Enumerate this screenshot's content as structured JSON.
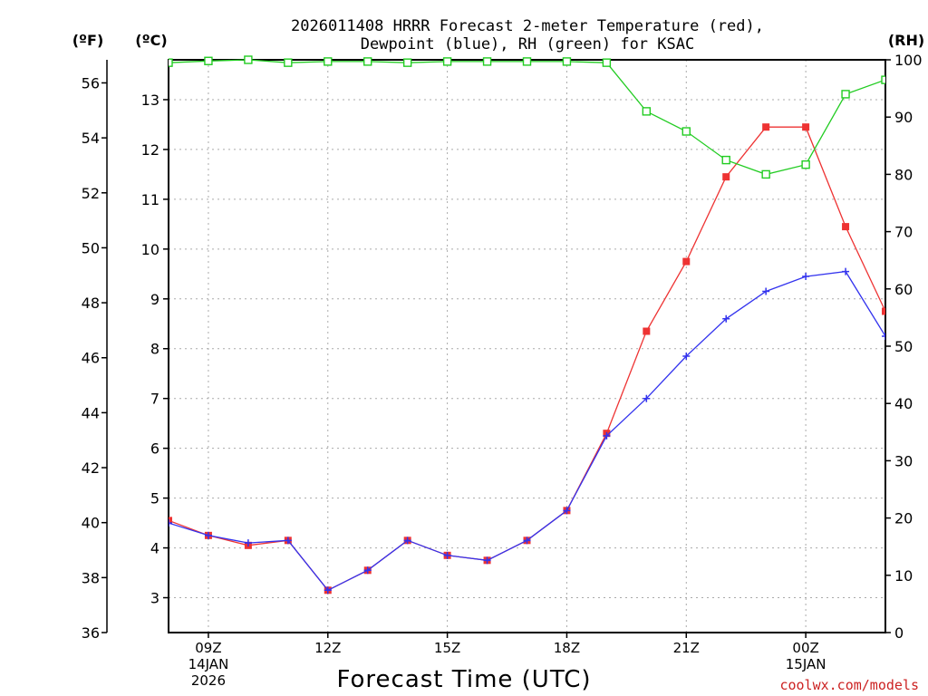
{
  "chart_data": {
    "type": "line",
    "title_line1": "2026011408 HRRR Forecast 2-meter Temperature (red),",
    "title_line2": "Dewpoint (blue), RH (green) for KSAC",
    "xlabel": "Forecast Time (UTC)",
    "credit": "coolwx.com/models",
    "unit_f": "(ºF)",
    "unit_c": "(ºC)",
    "unit_rh": "(RH)",
    "x": [
      8,
      9,
      10,
      11,
      12,
      13,
      14,
      15,
      16,
      17,
      18,
      19,
      20,
      21,
      22,
      23,
      24,
      25,
      26
    ],
    "xlim": [
      8,
      26
    ],
    "x_ticks": [
      {
        "x": 9,
        "label": "09Z",
        "sub1": "14JAN",
        "sub2": "2026"
      },
      {
        "x": 12,
        "label": "12Z",
        "sub1": "",
        "sub2": ""
      },
      {
        "x": 15,
        "label": "15Z",
        "sub1": "",
        "sub2": ""
      },
      {
        "x": 18,
        "label": "18Z",
        "sub1": "",
        "sub2": ""
      },
      {
        "x": 21,
        "label": "21Z",
        "sub1": "",
        "sub2": ""
      },
      {
        "x": 24,
        "label": "00Z",
        "sub1": "15JAN",
        "sub2": ""
      }
    ],
    "y_celsius": {
      "range": [
        2.3,
        13.8
      ],
      "ticks": [
        "3",
        "4",
        "5",
        "6",
        "7",
        "8",
        "9",
        "10",
        "11",
        "12",
        "13"
      ]
    },
    "y_fahrenheit": {
      "range": [
        36,
        56.84
      ],
      "ticks": [
        "36",
        "38",
        "40",
        "42",
        "44",
        "46",
        "48",
        "50",
        "52",
        "54",
        "56"
      ]
    },
    "y_rh": {
      "range": [
        0,
        100
      ],
      "ticks": [
        "0",
        "10",
        "20",
        "30",
        "40",
        "50",
        "60",
        "70",
        "80",
        "90",
        "100"
      ]
    },
    "series": [
      {
        "name": "Temperature",
        "color": "#ee3333",
        "marker": "filled-square",
        "axis": "celsius",
        "values": [
          4.55,
          4.25,
          4.05,
          4.15,
          3.15,
          3.55,
          4.15,
          3.85,
          3.75,
          4.15,
          4.75,
          6.3,
          8.35,
          9.75,
          11.45,
          12.45,
          12.45,
          10.45,
          8.75
        ]
      },
      {
        "name": "Dewpoint",
        "color": "#3333ee",
        "marker": "plus",
        "axis": "celsius",
        "values": [
          4.5,
          4.25,
          4.1,
          4.15,
          3.15,
          3.55,
          4.15,
          3.85,
          3.75,
          4.15,
          4.75,
          6.25,
          7.0,
          7.85,
          8.6,
          9.15,
          9.45,
          9.55,
          8.25
        ]
      },
      {
        "name": "RH",
        "color": "#22cc22",
        "marker": "open-square",
        "axis": "rh",
        "values": [
          99.5,
          99.8,
          100,
          99.5,
          99.7,
          99.7,
          99.5,
          99.7,
          99.7,
          99.7,
          99.7,
          99.5,
          91.0,
          87.5,
          82.5,
          80.0,
          81.7,
          94.0,
          96.5
        ]
      }
    ]
  }
}
